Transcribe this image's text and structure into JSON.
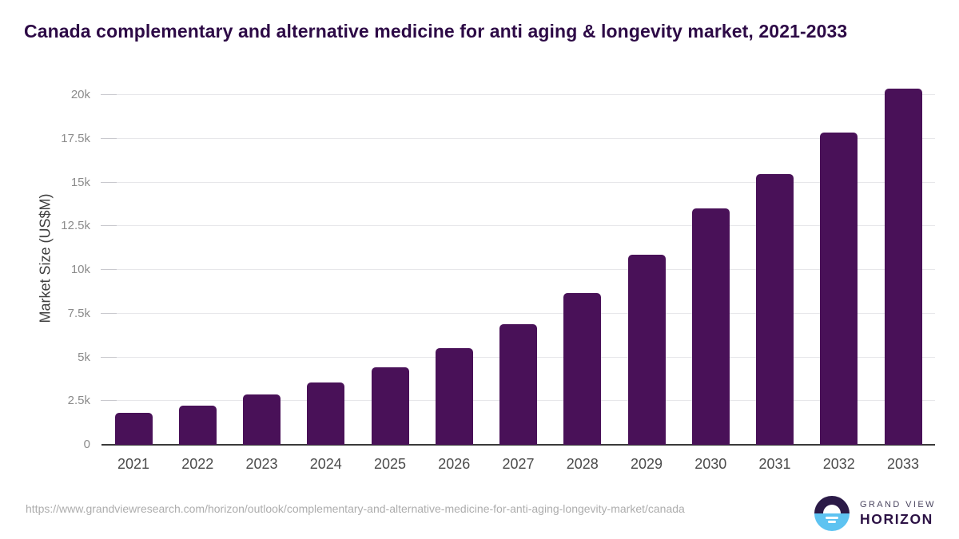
{
  "title": "Canada complementary and alternative medicine for anti aging & longevity market, 2021-2033",
  "chart_data": {
    "type": "bar",
    "title": "Canada complementary and alternative medicine for anti aging & longevity market, 2021-2033",
    "categories": [
      "2021",
      "2022",
      "2023",
      "2024",
      "2025",
      "2026",
      "2027",
      "2028",
      "2029",
      "2030",
      "2031",
      "2032",
      "2033"
    ],
    "values": [
      1850,
      2250,
      2880,
      3570,
      4430,
      5540,
      6900,
      8680,
      10880,
      13530,
      15490,
      17870,
      20380
    ],
    "xlabel": "",
    "ylabel": "Market Size (US$M)",
    "ylim": [
      0,
      21100
    ],
    "y_tick_values": [
      0,
      2500,
      5000,
      7500,
      10000,
      12500,
      15000,
      17500,
      20000
    ],
    "y_tick_labels": [
      "0",
      "2.5k",
      "5k",
      "7.5k",
      "10k",
      "12.5k",
      "15k",
      "17.5k",
      "20k"
    ],
    "grid": "horizontal",
    "legend": "none",
    "bar_color": "#491158"
  },
  "footer": {
    "source_url": "https://www.grandviewresearch.com/horizon/outlook/complementary-and-alternative-medicine-for-anti-aging-longevity-market/canada",
    "logo": {
      "line1": "GRAND VIEW",
      "line2": "HORIZON"
    }
  },
  "colors": {
    "bar": "#491158",
    "title_text": "#2d0a46",
    "logo_dark": "#2b1a47",
    "logo_blue": "#5ec3f1"
  }
}
